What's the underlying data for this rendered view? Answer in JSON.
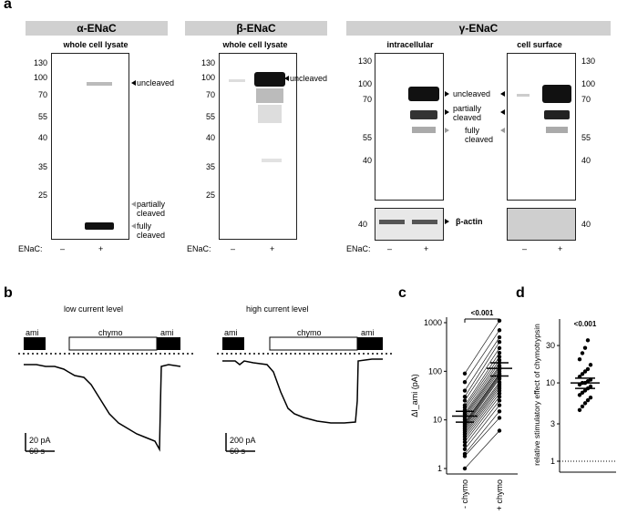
{
  "panel_a": {
    "letter": "a",
    "alpha": {
      "header": "α-ENaC",
      "subtitle": "whole cell lysate",
      "ticks": [
        "130",
        "100",
        "70",
        "55",
        "40",
        "35",
        "25"
      ],
      "labels": {
        "uncleaved": "uncleaved",
        "partially": "partially\ncleaved",
        "fully": "fully\ncleaved"
      },
      "enac_label": "ENaC:",
      "lanes": [
        "–",
        "+"
      ]
    },
    "beta": {
      "header": "β-ENaC",
      "subtitle": "whole cell lysate",
      "ticks": [
        "130",
        "100",
        "70",
        "55",
        "40",
        "35",
        "25"
      ],
      "labels": {
        "uncleaved": "uncleaved"
      },
      "enac_label": "ENaC:",
      "lanes": [
        "–",
        "+"
      ]
    },
    "gamma": {
      "header": "γ-ENaC",
      "sub_left": "intracellular",
      "sub_right": "cell surface",
      "ticks": [
        "130",
        "100",
        "70",
        "55",
        "40"
      ],
      "actin_tick": "40",
      "labels": {
        "uncleaved": "uncleaved",
        "partially": "partially\ncleaved",
        "fully": "fully\ncleaved",
        "actin": "β-actin"
      },
      "enac_label": "ENaC:",
      "lanes": [
        "–",
        "+"
      ]
    }
  },
  "panel_b": {
    "letter": "b",
    "low": {
      "title": "low current level",
      "ami1": "ami",
      "chymo": "chymo",
      "ami2": "ami",
      "scale_y": "20 pA",
      "scale_x": "60 s"
    },
    "high": {
      "title": "high current level",
      "ami1": "ami",
      "chymo": "chymo",
      "ami2": "ami",
      "scale_y": "200 pA",
      "scale_x": "60 s"
    }
  },
  "panel_c": {
    "letter": "c",
    "chart_data": {
      "type": "scatter",
      "ylabel": "ΔI_ami (pA)",
      "yscale": "log",
      "ylim": [
        1,
        1000
      ],
      "yticks": [
        "1",
        "10",
        "100",
        "1000"
      ],
      "categories": [
        "- chymo",
        "+ chymo"
      ],
      "pvalue": "<0.001",
      "pairs": [
        [
          1,
          6
        ],
        [
          1.8,
          11
        ],
        [
          2,
          15
        ],
        [
          2.5,
          20
        ],
        [
          3,
          25
        ],
        [
          3.5,
          30
        ],
        [
          4,
          35
        ],
        [
          4.5,
          40
        ],
        [
          5,
          45
        ],
        [
          5.5,
          50
        ],
        [
          6,
          55
        ],
        [
          6.5,
          60
        ],
        [
          7,
          70
        ],
        [
          7.5,
          75
        ],
        [
          8,
          80
        ],
        [
          8.5,
          85
        ],
        [
          9,
          90
        ],
        [
          10,
          100
        ],
        [
          11,
          110
        ],
        [
          12,
          120
        ],
        [
          13,
          130
        ],
        [
          14,
          150
        ],
        [
          16,
          170
        ],
        [
          18,
          200
        ],
        [
          20,
          240
        ],
        [
          25,
          300
        ],
        [
          30,
          400
        ],
        [
          40,
          500
        ],
        [
          60,
          700
        ],
        [
          90,
          1100
        ]
      ],
      "mean": [
        12,
        115
      ],
      "sem": [
        3,
        35
      ]
    }
  },
  "panel_d": {
    "letter": "d",
    "chart_data": {
      "type": "scatter",
      "ylabel": "relative stimulatory effect of chymotrypsin",
      "yscale": "log",
      "ylim": [
        1,
        50
      ],
      "yticks": [
        "1",
        "3",
        "10",
        "30"
      ],
      "pvalue": "<0.001",
      "values": [
        4.5,
        5,
        5.5,
        6,
        6.5,
        7,
        7.5,
        8,
        8.5,
        9,
        9.5,
        10,
        10,
        10.5,
        11,
        12,
        13,
        14,
        15,
        17,
        20,
        24,
        28,
        35
      ],
      "mean": 10,
      "sem": 1.5
    }
  }
}
